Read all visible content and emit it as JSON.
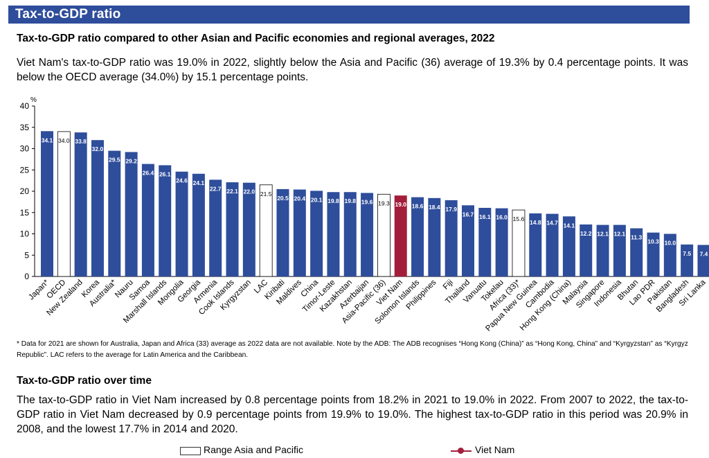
{
  "header": {
    "title": "Tax-to-GDP ratio"
  },
  "section1": {
    "title": "Tax-to-GDP ratio compared to other Asian and Pacific economies and regional averages, 2022",
    "paragraph": "Viet Nam's tax-to-GDP ratio was 19.0% in 2022, slightly below the Asia and Pacific (36) average of 19.3% by 0.4 percentage points. It was below the OECD average (34.0%) by 15.1 percentage points."
  },
  "note": "* Data for 2021 are shown for Australia, Japan and Africa (33) average as 2022 data are not available. Note by the ADB: The ADB recognises “Hong Kong (China)” as “Hong Kong, China” and “Kyrgyzstan” as “Kyrgyz Republic”. LAC refers to the average for Latin America and the Caribbean.",
  "section2": {
    "title": "Tax-to-GDP ratio over time",
    "paragraph": "The tax-to-GDP ratio in Viet Nam increased by 0.8 percentage points from 18.2% in 2021 to 19.0% in 2022. From 2007 to 2022, the tax-to-GDP ratio in Viet Nam decreased by 0.9 percentage points from 19.9% to 19.0%. The highest tax-to-GDP ratio in this period was 20.9% in 2008, and the lowest 17.7% in 2014 and 2020."
  },
  "legend": {
    "range": "Range Asia and Pacific",
    "vietnam": "Viet Nam"
  },
  "colors": {
    "banner": "#2e4d9b",
    "bar": "#2e4d9b",
    "average": "#ffffff",
    "highlight": "#a31e3a"
  },
  "chart_data": {
    "type": "bar",
    "ylabel": "%",
    "ylim": [
      0,
      40
    ],
    "yticks": [
      0,
      5,
      10,
      15,
      20,
      25,
      30,
      35,
      40
    ],
    "grid": false,
    "categories": [
      "Japan*",
      "OECD",
      "New Zealand",
      "Korea",
      "Australia*",
      "Nauru",
      "Samoa",
      "Marshall Islands",
      "Mongolia",
      "Georgia",
      "Armenia",
      "Cook Islands",
      "Kyrgyzstan",
      "LAC",
      "Kiribati",
      "Maldives",
      "China",
      "Timor-Leste",
      "Kazakhstan",
      "Azerbaijan",
      "Asia-Pacific (36)",
      "Viet Nam",
      "Solomon Islands",
      "Philippines",
      "Fiji",
      "Thailand",
      "Vanuatu",
      "Tokelau",
      "Africa (33)*",
      "Papua New Guinea",
      "Cambodia",
      "Hong Kong (China)",
      "Malaysia",
      "Singapore",
      "Indonesia",
      "Bhutan",
      "Lao PDR",
      "Pakistan",
      "Bangladesh",
      "Sri Lanka"
    ],
    "values": [
      34.1,
      34.0,
      33.8,
      32.0,
      29.5,
      29.2,
      26.4,
      26.1,
      24.6,
      24.1,
      22.7,
      22.1,
      22.0,
      21.5,
      20.5,
      20.4,
      20.1,
      19.8,
      19.8,
      19.6,
      19.3,
      19.0,
      18.6,
      18.4,
      17.9,
      16.7,
      16.1,
      16.0,
      15.6,
      14.8,
      14.7,
      14.1,
      12.2,
      12.1,
      12.1,
      11.3,
      10.3,
      10.0,
      7.5,
      7.4
    ],
    "labels": [
      "34.1",
      "34.0",
      "33.8",
      "32.0",
      "29.5",
      "29.2",
      "26.4",
      "26.1",
      "24.6",
      "24.1",
      "22.7",
      "22.1",
      "22.0",
      "21.5",
      "20.5",
      "20.4",
      "20.1",
      "19.8",
      "19.8",
      "19.6",
      "19.3",
      "19.0",
      "18.6",
      "18.4",
      "17.9",
      "16.7",
      "16.1",
      "16.0",
      "15.6",
      "14.8",
      "14.7",
      "14.1",
      "12.2",
      "12.1",
      "12.1",
      "11.3",
      "10.3",
      "10.0",
      "7.5",
      "7.4"
    ],
    "bar_kind": [
      "country",
      "average",
      "country",
      "country",
      "country",
      "country",
      "country",
      "country",
      "country",
      "country",
      "country",
      "country",
      "country",
      "average",
      "country",
      "country",
      "country",
      "country",
      "country",
      "country",
      "average",
      "highlight",
      "country",
      "country",
      "country",
      "country",
      "country",
      "country",
      "average",
      "country",
      "country",
      "country",
      "country",
      "country",
      "country",
      "country",
      "country",
      "country",
      "country",
      "country"
    ]
  }
}
